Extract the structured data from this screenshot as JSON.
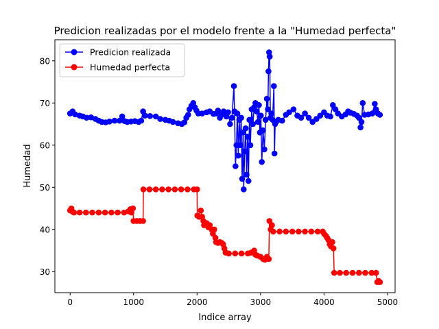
{
  "chart_data": {
    "type": "line",
    "title": "Predicion realizadas por el modelo frente a la \"Humedad perfecta\"",
    "xlabel": "Indice array",
    "ylabel": "Humedad",
    "xlim": [
      -240,
      5120
    ],
    "ylim": [
      25,
      85
    ],
    "x_ticks": [
      0,
      1000,
      2000,
      3000,
      4000,
      5000
    ],
    "y_ticks": [
      30,
      40,
      50,
      60,
      70,
      80
    ],
    "grid": false,
    "legend": {
      "position": "upper-left"
    },
    "series": [
      {
        "name": "Predicion realizada",
        "color": "#0000ff",
        "marker": "circle",
        "points": [
          [
            0,
            67.5
          ],
          [
            40,
            68
          ],
          [
            80,
            67.3
          ],
          [
            150,
            67
          ],
          [
            200,
            66.8
          ],
          [
            260,
            66.5
          ],
          [
            330,
            66.6
          ],
          [
            400,
            66.2
          ],
          [
            450,
            65.8
          ],
          [
            500,
            65.5
          ],
          [
            560,
            65.4
          ],
          [
            620,
            65.6
          ],
          [
            700,
            65.8
          ],
          [
            780,
            65.8
          ],
          [
            820,
            66.8
          ],
          [
            860,
            65.7
          ],
          [
            900,
            65.5
          ],
          [
            960,
            65.6
          ],
          [
            1020,
            65.7
          ],
          [
            1080,
            65.5
          ],
          [
            1120,
            65.8
          ],
          [
            1150,
            68
          ],
          [
            1180,
            67
          ],
          [
            1260,
            66.9
          ],
          [
            1350,
            66.8
          ],
          [
            1420,
            66.2
          ],
          [
            1500,
            66
          ],
          [
            1560,
            65.8
          ],
          [
            1620,
            65.5
          ],
          [
            1700,
            65.2
          ],
          [
            1760,
            65
          ],
          [
            1800,
            65.4
          ],
          [
            1830,
            66.5
          ],
          [
            1860,
            67.2
          ],
          [
            1880,
            68.5
          ],
          [
            1910,
            69.3
          ],
          [
            1940,
            70
          ],
          [
            1965,
            69
          ],
          [
            1990,
            68.2
          ],
          [
            2020,
            67.5
          ],
          [
            2080,
            67.5
          ],
          [
            2150,
            67.8
          ],
          [
            2200,
            68
          ],
          [
            2260,
            67.4
          ],
          [
            2300,
            67.5
          ],
          [
            2330,
            68.2
          ],
          [
            2360,
            66.5
          ],
          [
            2390,
            67.3
          ],
          [
            2420,
            68
          ],
          [
            2460,
            66.8
          ],
          [
            2490,
            67.8
          ],
          [
            2520,
            65
          ],
          [
            2550,
            66.5
          ],
          [
            2580,
            74
          ],
          [
            2590,
            68
          ],
          [
            2605,
            55
          ],
          [
            2620,
            60
          ],
          [
            2635,
            67.5
          ],
          [
            2650,
            57.5
          ],
          [
            2665,
            66
          ],
          [
            2680,
            60
          ],
          [
            2695,
            66.5
          ],
          [
            2710,
            52
          ],
          [
            2725,
            63
          ],
          [
            2735,
            49.5
          ],
          [
            2750,
            58.5
          ],
          [
            2765,
            64
          ],
          [
            2780,
            53
          ],
          [
            2795,
            62
          ],
          [
            2810,
            51.5
          ],
          [
            2825,
            66
          ],
          [
            2840,
            60
          ],
          [
            2860,
            68.5
          ],
          [
            2880,
            65
          ],
          [
            2900,
            69
          ],
          [
            2920,
            70
          ],
          [
            2940,
            68
          ],
          [
            2960,
            65.5
          ],
          [
            2975,
            69.5
          ],
          [
            2990,
            63
          ],
          [
            3005,
            67
          ],
          [
            3020,
            56
          ],
          [
            3040,
            63.5
          ],
          [
            3060,
            59
          ],
          [
            3080,
            66
          ],
          [
            3100,
            71
          ],
          [
            3115,
            68.5
          ],
          [
            3125,
            77.5
          ],
          [
            3135,
            82
          ],
          [
            3145,
            81
          ],
          [
            3155,
            66.5
          ],
          [
            3170,
            67.5
          ],
          [
            3190,
            66
          ],
          [
            3210,
            74
          ],
          [
            3220,
            58
          ],
          [
            3230,
            65
          ],
          [
            3245,
            65.5
          ],
          [
            3280,
            66
          ],
          [
            3340,
            65.8
          ],
          [
            3400,
            67.2
          ],
          [
            3450,
            67.8
          ],
          [
            3520,
            68.5
          ],
          [
            3580,
            67
          ],
          [
            3640,
            66.5
          ],
          [
            3700,
            67.5
          ],
          [
            3760,
            66.5
          ],
          [
            3820,
            65.5
          ],
          [
            3880,
            66.2
          ],
          [
            3940,
            67
          ],
          [
            4000,
            67.8
          ],
          [
            4050,
            67
          ],
          [
            4100,
            66.8
          ],
          [
            4140,
            69.5
          ],
          [
            4180,
            68.5
          ],
          [
            4220,
            67.5
          ],
          [
            4280,
            66.8
          ],
          [
            4340,
            67.3
          ],
          [
            4380,
            68
          ],
          [
            4420,
            67.7
          ],
          [
            4470,
            67.4
          ],
          [
            4520,
            67
          ],
          [
            4550,
            66.5
          ],
          [
            4575,
            64.2
          ],
          [
            4590,
            65.5
          ],
          [
            4610,
            70
          ],
          [
            4640,
            67.2
          ],
          [
            4700,
            67.3
          ],
          [
            4760,
            67.5
          ],
          [
            4800,
            69.8
          ],
          [
            4820,
            68.5
          ],
          [
            4850,
            67.5
          ],
          [
            4880,
            67.2
          ]
        ]
      },
      {
        "name": "Humedad perfecta",
        "color": "#ff0000",
        "marker": "circle",
        "points": [
          [
            0,
            44.5
          ],
          [
            20,
            45
          ],
          [
            40,
            44.2
          ],
          [
            60,
            44
          ],
          [
            150,
            44
          ],
          [
            250,
            44
          ],
          [
            350,
            44
          ],
          [
            450,
            44
          ],
          [
            550,
            44
          ],
          [
            650,
            44
          ],
          [
            750,
            44
          ],
          [
            850,
            44
          ],
          [
            920,
            44.3
          ],
          [
            950,
            44.8
          ],
          [
            965,
            44
          ],
          [
            990,
            45
          ],
          [
            1000,
            42
          ],
          [
            1050,
            42
          ],
          [
            1100,
            42
          ],
          [
            1150,
            42
          ],
          [
            1155,
            49.5
          ],
          [
            1250,
            49.5
          ],
          [
            1350,
            49.5
          ],
          [
            1450,
            49.5
          ],
          [
            1550,
            49.5
          ],
          [
            1650,
            49.5
          ],
          [
            1750,
            49.5
          ],
          [
            1850,
            49.5
          ],
          [
            1950,
            49.5
          ],
          [
            2000,
            49.5
          ],
          [
            2005,
            43.3
          ],
          [
            2030,
            43
          ],
          [
            2060,
            44.5
          ],
          [
            2080,
            43
          ],
          [
            2100,
            42
          ],
          [
            2110,
            41
          ],
          [
            2150,
            41.5
          ],
          [
            2180,
            40.5
          ],
          [
            2200,
            41
          ],
          [
            2230,
            40
          ],
          [
            2250,
            39
          ],
          [
            2270,
            40
          ],
          [
            2290,
            38
          ],
          [
            2300,
            37
          ],
          [
            2330,
            36.8
          ],
          [
            2360,
            37
          ],
          [
            2390,
            36.8
          ],
          [
            2410,
            36.5
          ],
          [
            2430,
            35.5
          ],
          [
            2450,
            34.5
          ],
          [
            2500,
            34.3
          ],
          [
            2600,
            34.3
          ],
          [
            2700,
            34.3
          ],
          [
            2800,
            34.3
          ],
          [
            2850,
            34.5
          ],
          [
            2900,
            35
          ],
          [
            2920,
            34
          ],
          [
            2950,
            33.8
          ],
          [
            3000,
            33.5
          ],
          [
            3040,
            33
          ],
          [
            3070,
            32.8
          ],
          [
            3100,
            33.5
          ],
          [
            3130,
            33
          ],
          [
            3140,
            42
          ],
          [
            3160,
            40
          ],
          [
            3180,
            41
          ],
          [
            3200,
            39.5
          ],
          [
            3300,
            39.5
          ],
          [
            3400,
            39.5
          ],
          [
            3500,
            39.5
          ],
          [
            3600,
            39.5
          ],
          [
            3700,
            39.5
          ],
          [
            3800,
            39.5
          ],
          [
            3900,
            39.5
          ],
          [
            3980,
            39.5
          ],
          [
            4000,
            39
          ],
          [
            4030,
            38.5
          ],
          [
            4050,
            38
          ],
          [
            4070,
            37.5
          ],
          [
            4090,
            36.5
          ],
          [
            4110,
            36
          ],
          [
            4130,
            37
          ],
          [
            4150,
            35.5
          ],
          [
            4160,
            29.7
          ],
          [
            4250,
            29.7
          ],
          [
            4350,
            29.7
          ],
          [
            4450,
            29.7
          ],
          [
            4550,
            29.7
          ],
          [
            4650,
            29.7
          ],
          [
            4750,
            29.7
          ],
          [
            4820,
            29.7
          ],
          [
            4840,
            27.5
          ],
          [
            4860,
            27.8
          ],
          [
            4880,
            27.5
          ]
        ]
      }
    ]
  }
}
